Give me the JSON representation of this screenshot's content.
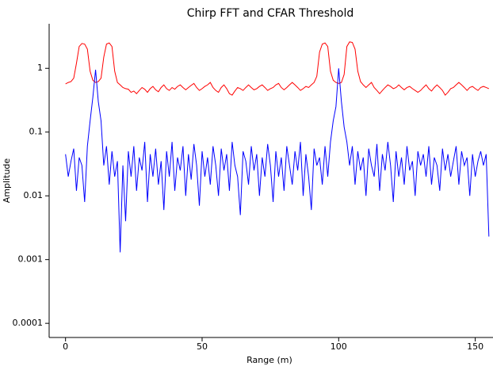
{
  "chart_data": {
    "type": "line",
    "title": "Chirp FFT and CFAR Threshold",
    "xlabel": "Range (m)",
    "ylabel": "Amplitude",
    "log_y": true,
    "xlim": [
      -6,
      156.5
    ],
    "ylim": [
      6e-05,
      5
    ],
    "xticks": [
      0,
      50,
      100,
      150
    ],
    "yticks": [
      0.0001,
      0.001,
      0.01,
      0.1,
      1
    ],
    "x": [
      0,
      1,
      2,
      3,
      4,
      5,
      6,
      7,
      8,
      9,
      10,
      11,
      12,
      13,
      14,
      15,
      16,
      17,
      18,
      19,
      20,
      21,
      22,
      23,
      24,
      25,
      26,
      27,
      28,
      29,
      30,
      31,
      32,
      33,
      34,
      35,
      36,
      37,
      38,
      39,
      40,
      41,
      42,
      43,
      44,
      45,
      46,
      47,
      48,
      49,
      50,
      51,
      52,
      53,
      54,
      55,
      56,
      57,
      58,
      59,
      60,
      61,
      62,
      63,
      64,
      65,
      66,
      67,
      68,
      69,
      70,
      71,
      72,
      73,
      74,
      75,
      76,
      77,
      78,
      79,
      80,
      81,
      82,
      83,
      84,
      85,
      86,
      87,
      88,
      89,
      90,
      91,
      92,
      93,
      94,
      95,
      96,
      97,
      98,
      99,
      100,
      101,
      102,
      103,
      104,
      105,
      106,
      107,
      108,
      109,
      110,
      111,
      112,
      113,
      114,
      115,
      116,
      117,
      118,
      119,
      120,
      121,
      122,
      123,
      124,
      125,
      126,
      127,
      128,
      129,
      130,
      131,
      132,
      133,
      134,
      135,
      136,
      137,
      138,
      139,
      140,
      141,
      142,
      143,
      144,
      145,
      146,
      147,
      148,
      149,
      150,
      151,
      152,
      153,
      154,
      155
    ],
    "series": [
      {
        "color": "#ff0000",
        "values": [
          0.57,
          0.6,
          0.62,
          0.7,
          1.2,
          2.2,
          2.45,
          2.4,
          2.0,
          0.9,
          0.65,
          0.6,
          0.62,
          0.7,
          1.5,
          2.4,
          2.5,
          2.2,
          0.9,
          0.6,
          0.55,
          0.5,
          0.48,
          0.47,
          0.42,
          0.44,
          0.4,
          0.45,
          0.5,
          0.47,
          0.42,
          0.48,
          0.52,
          0.46,
          0.43,
          0.5,
          0.55,
          0.48,
          0.45,
          0.5,
          0.47,
          0.52,
          0.55,
          0.5,
          0.46,
          0.5,
          0.54,
          0.58,
          0.5,
          0.45,
          0.48,
          0.52,
          0.55,
          0.6,
          0.5,
          0.45,
          0.42,
          0.5,
          0.55,
          0.48,
          0.4,
          0.38,
          0.44,
          0.5,
          0.48,
          0.45,
          0.5,
          0.55,
          0.5,
          0.46,
          0.48,
          0.52,
          0.55,
          0.5,
          0.45,
          0.48,
          0.5,
          0.55,
          0.58,
          0.5,
          0.46,
          0.5,
          0.55,
          0.6,
          0.55,
          0.5,
          0.45,
          0.48,
          0.52,
          0.5,
          0.55,
          0.6,
          0.75,
          1.8,
          2.4,
          2.5,
          2.2,
          0.9,
          0.65,
          0.6,
          0.58,
          0.6,
          0.8,
          2.2,
          2.6,
          2.55,
          2.0,
          0.9,
          0.62,
          0.55,
          0.5,
          0.55,
          0.6,
          0.5,
          0.45,
          0.4,
          0.45,
          0.5,
          0.55,
          0.52,
          0.48,
          0.5,
          0.55,
          0.5,
          0.46,
          0.5,
          0.52,
          0.48,
          0.45,
          0.42,
          0.45,
          0.5,
          0.55,
          0.48,
          0.44,
          0.5,
          0.55,
          0.5,
          0.45,
          0.38,
          0.42,
          0.48,
          0.5,
          0.55,
          0.6,
          0.55,
          0.5,
          0.45,
          0.5,
          0.52,
          0.48,
          0.45,
          0.5,
          0.52,
          0.5,
          0.48
        ]
      },
      {
        "color": "#0000ff",
        "values": [
          0.045,
          0.02,
          0.035,
          0.055,
          0.012,
          0.04,
          0.03,
          0.008,
          0.06,
          0.15,
          0.35,
          0.95,
          0.3,
          0.15,
          0.03,
          0.06,
          0.015,
          0.05,
          0.02,
          0.035,
          0.0013,
          0.03,
          0.004,
          0.05,
          0.02,
          0.06,
          0.012,
          0.04,
          0.025,
          0.07,
          0.008,
          0.045,
          0.02,
          0.055,
          0.015,
          0.035,
          0.006,
          0.05,
          0.02,
          0.07,
          0.012,
          0.04,
          0.025,
          0.06,
          0.01,
          0.045,
          0.018,
          0.065,
          0.03,
          0.007,
          0.05,
          0.02,
          0.04,
          0.015,
          0.06,
          0.03,
          0.01,
          0.055,
          0.025,
          0.045,
          0.012,
          0.07,
          0.03,
          0.02,
          0.005,
          0.05,
          0.035,
          0.015,
          0.06,
          0.025,
          0.045,
          0.01,
          0.04,
          0.02,
          0.065,
          0.03,
          0.008,
          0.05,
          0.02,
          0.04,
          0.012,
          0.06,
          0.03,
          0.015,
          0.05,
          0.025,
          0.07,
          0.01,
          0.045,
          0.02,
          0.006,
          0.055,
          0.03,
          0.04,
          0.015,
          0.06,
          0.02,
          0.07,
          0.15,
          0.25,
          1.0,
          0.3,
          0.12,
          0.07,
          0.03,
          0.06,
          0.015,
          0.05,
          0.025,
          0.04,
          0.01,
          0.055,
          0.03,
          0.02,
          0.065,
          0.012,
          0.045,
          0.025,
          0.07,
          0.03,
          0.008,
          0.05,
          0.02,
          0.04,
          0.015,
          0.06,
          0.025,
          0.035,
          0.01,
          0.05,
          0.03,
          0.045,
          0.02,
          0.06,
          0.015,
          0.04,
          0.03,
          0.012,
          0.055,
          0.025,
          0.045,
          0.02,
          0.035,
          0.06,
          0.015,
          0.05,
          0.03,
          0.04,
          0.01,
          0.045,
          0.02,
          0.035,
          0.05,
          0.03,
          0.045,
          0.0023
        ]
      }
    ]
  }
}
